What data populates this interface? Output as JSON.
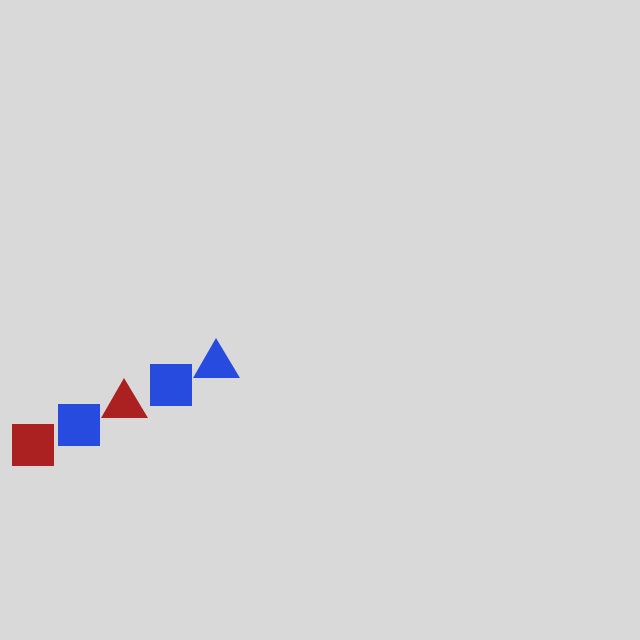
{
  "canvas": {
    "background": "#d9d9d9"
  },
  "colors": {
    "red": "#ab2020",
    "blue": "#264bde"
  },
  "shapes": [
    {
      "kind": "square",
      "color": "red"
    },
    {
      "kind": "square",
      "color": "blue"
    },
    {
      "kind": "triangle",
      "color": "red"
    },
    {
      "kind": "square",
      "color": "blue"
    },
    {
      "kind": "triangle",
      "color": "blue"
    }
  ]
}
